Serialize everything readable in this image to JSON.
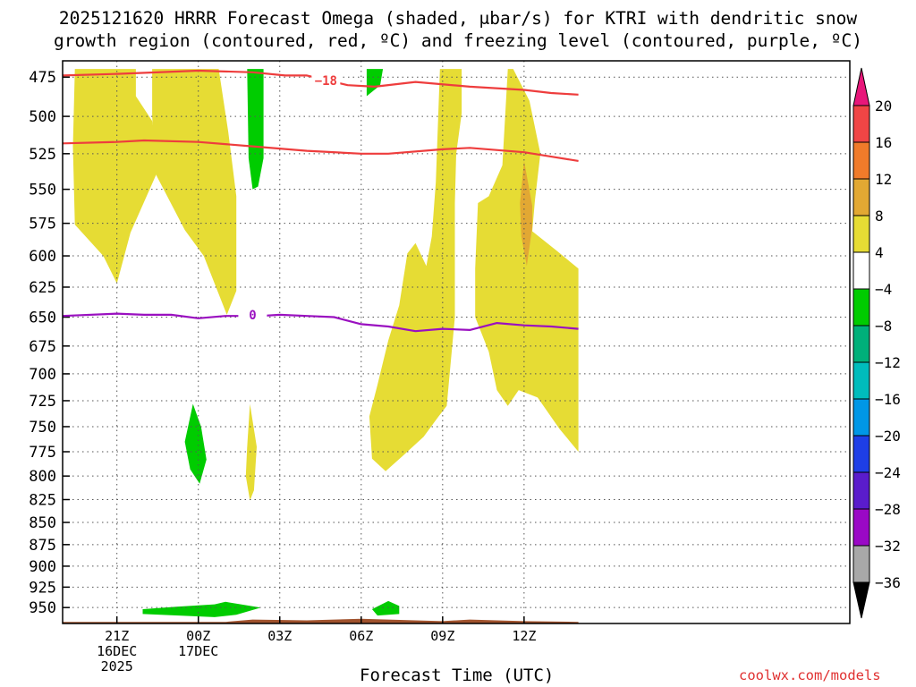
{
  "title_line1": "2025121620 HRRR Forecast Omega (shaded, μbar/s) for KTRI with dendritic snow",
  "title_line2": "growth region (contoured, red, ºC) and freezing level (contoured, purple, ºC)",
  "credit": "coolwx.com/models",
  "chart_data": {
    "type": "contour",
    "xlabel": "Forecast Time (UTC)",
    "x_range_hours": [
      -2,
      27
    ],
    "x_ticks": [
      {
        "hour": 0,
        "lines": [
          "21Z",
          "16DEC",
          "2025"
        ]
      },
      {
        "hour": 3,
        "lines": [
          "00Z",
          "17DEC"
        ]
      },
      {
        "hour": 6,
        "lines": [
          "03Z"
        ]
      },
      {
        "hour": 9,
        "lines": [
          "06Z"
        ]
      },
      {
        "hour": 12,
        "lines": [
          "09Z"
        ]
      },
      {
        "hour": 15,
        "lines": [
          "12Z"
        ]
      }
    ],
    "y_scale": "log-pressure",
    "y_range_hpa": [
      465,
      970
    ],
    "y_ticks": [
      475,
      500,
      525,
      550,
      575,
      600,
      625,
      650,
      675,
      700,
      725,
      750,
      775,
      800,
      825,
      850,
      875,
      900,
      925,
      950
    ],
    "grid": true,
    "colorbar": {
      "levels": [
        "20",
        "16",
        "12",
        "8",
        "4",
        "−4",
        "−8",
        "−12",
        "−16",
        "−20",
        "−24",
        "−28",
        "−32",
        "−36"
      ],
      "colors": [
        "#e8177a",
        "#f04545",
        "#f07b2a",
        "#e2a833",
        "#e6dc34",
        "#ffffff",
        "#00cc00",
        "#00b07a",
        "#00bcbc",
        "#0097e6",
        "#1e3ee6",
        "#5a1ccc",
        "#9a08c6",
        "#a8a8a8",
        "#000000"
      ]
    },
    "contours": [
      {
        "name": "-18 °C",
        "label": "−18",
        "color": "#ee3d3d",
        "points": [
          [
            -2,
            474
          ],
          [
            0,
            473
          ],
          [
            3,
            471
          ],
          [
            5,
            472
          ],
          [
            6.2,
            474
          ],
          [
            7,
            474
          ],
          [
            8.5,
            480
          ],
          [
            9.5,
            481
          ],
          [
            11,
            478
          ],
          [
            13,
            481
          ],
          [
            15,
            483
          ],
          [
            16,
            485
          ],
          [
            17,
            486
          ]
        ]
      },
      {
        "name": "-12 °C",
        "label": "",
        "color": "#ee3d3d",
        "points": [
          [
            -2,
            518
          ],
          [
            0,
            517
          ],
          [
            1,
            516
          ],
          [
            3,
            517
          ],
          [
            5,
            520
          ],
          [
            7,
            523
          ],
          [
            9,
            525
          ],
          [
            10,
            525
          ],
          [
            12,
            522
          ],
          [
            13,
            521
          ],
          [
            15,
            524
          ],
          [
            16,
            527
          ],
          [
            17,
            530
          ]
        ]
      },
      {
        "name": "0 °C",
        "label": "0",
        "color": "#9a10c0",
        "points": [
          [
            -2,
            649
          ],
          [
            0,
            647
          ],
          [
            1,
            648
          ],
          [
            2,
            648
          ],
          [
            3,
            651
          ],
          [
            4,
            649
          ],
          [
            5.3,
            649
          ],
          [
            6,
            648
          ],
          [
            7,
            649
          ],
          [
            8,
            650
          ],
          [
            9,
            656
          ],
          [
            10,
            658
          ],
          [
            11,
            662
          ],
          [
            12,
            660
          ],
          [
            13,
            661
          ],
          [
            14,
            655
          ],
          [
            15,
            657
          ],
          [
            16,
            658
          ],
          [
            17,
            660
          ]
        ]
      }
    ],
    "shaded_regions": [
      {
        "color": "#e6dc34",
        "points": [
          [
            -1.55,
            470
          ],
          [
            0.7,
            470
          ],
          [
            0.7,
            487
          ],
          [
            1.3,
            503
          ],
          [
            1.6,
            533
          ],
          [
            0.5,
            582
          ],
          [
            0,
            622
          ],
          [
            -0.5,
            600
          ],
          [
            -1.55,
            576
          ],
          [
            -1.62,
            520
          ]
        ]
      },
      {
        "color": "#e6dc34",
        "points": [
          [
            1.3,
            470
          ],
          [
            3.75,
            470
          ],
          [
            4.1,
            510
          ],
          [
            4.4,
            555
          ],
          [
            4.4,
            628
          ],
          [
            4.05,
            648
          ],
          [
            3.2,
            600
          ],
          [
            2.5,
            580
          ],
          [
            1.45,
            540
          ],
          [
            1.3,
            500
          ]
        ]
      },
      {
        "color": "#e6dc34",
        "points": [
          [
            11.9,
            470
          ],
          [
            12.7,
            470
          ],
          [
            12.7,
            498
          ],
          [
            12.5,
            525
          ],
          [
            12.45,
            560
          ],
          [
            12.45,
            650
          ],
          [
            12.15,
            730
          ],
          [
            11.85,
            740
          ],
          [
            11.3,
            760
          ],
          [
            10.5,
            780
          ],
          [
            9.9,
            795
          ],
          [
            9.4,
            782
          ],
          [
            9.3,
            740
          ],
          [
            9.6,
            710
          ],
          [
            10.0,
            670
          ],
          [
            10.4,
            640
          ],
          [
            10.7,
            598
          ],
          [
            11.0,
            590
          ],
          [
            11.4,
            608
          ],
          [
            11.6,
            585
          ],
          [
            11.75,
            545
          ]
        ]
      },
      {
        "color": "#e6dc34",
        "points": [
          [
            14.4,
            470
          ],
          [
            14.6,
            470
          ],
          [
            15.2,
            490
          ],
          [
            15.6,
            525
          ],
          [
            15.4,
            558
          ],
          [
            15.3,
            581
          ],
          [
            16.2,
            596
          ],
          [
            17,
            610
          ],
          [
            17,
            775
          ],
          [
            16.3,
            752
          ],
          [
            15.5,
            722
          ],
          [
            14.8,
            715
          ],
          [
            14.4,
            730
          ],
          [
            14.0,
            715
          ],
          [
            13.7,
            680
          ],
          [
            13.2,
            650
          ],
          [
            13.2,
            610
          ],
          [
            13.3,
            560
          ],
          [
            13.7,
            555
          ],
          [
            14.2,
            533
          ]
        ]
      },
      {
        "color": "#e6dc34",
        "points": [
          [
            4.9,
            728
          ],
          [
            5.15,
            770
          ],
          [
            5.05,
            815
          ],
          [
            4.9,
            826
          ],
          [
            4.75,
            800
          ],
          [
            4.8,
            770
          ]
        ]
      },
      {
        "color": "#e2a833",
        "points": [
          [
            15.0,
            530
          ],
          [
            15.3,
            562
          ],
          [
            15.3,
            578
          ],
          [
            15.1,
            608
          ],
          [
            14.9,
            585
          ],
          [
            14.85,
            560
          ]
        ]
      },
      {
        "color": "#00cc00",
        "points": [
          [
            4.8,
            470
          ],
          [
            5.4,
            470
          ],
          [
            5.4,
            528
          ],
          [
            5.2,
            548
          ],
          [
            5.0,
            550
          ],
          [
            4.85,
            528
          ]
        ]
      },
      {
        "color": "#00cc00",
        "points": [
          [
            9.2,
            470
          ],
          [
            9.8,
            470
          ],
          [
            9.7,
            480
          ],
          [
            9.2,
            487
          ]
        ]
      },
      {
        "color": "#00cc00",
        "points": [
          [
            2.8,
            728
          ],
          [
            3.1,
            750
          ],
          [
            3.3,
            783
          ],
          [
            3.05,
            808
          ],
          [
            2.7,
            793
          ],
          [
            2.5,
            765
          ]
        ]
      },
      {
        "color": "#00cc00",
        "points": [
          [
            0.95,
            952
          ],
          [
            2.2,
            949
          ],
          [
            3.6,
            946
          ],
          [
            4,
            943
          ],
          [
            5.3,
            950
          ],
          [
            4.4,
            959
          ],
          [
            3.6,
            962
          ],
          [
            0.95,
            958
          ]
        ]
      },
      {
        "color": "#00cc00",
        "points": [
          [
            9.4,
            952
          ],
          [
            10.0,
            942
          ],
          [
            10.4,
            948
          ],
          [
            10.4,
            958
          ],
          [
            9.6,
            960
          ]
        ]
      },
      {
        "color": "#a0522d",
        "points": [
          [
            -2,
            968
          ],
          [
            4,
            968
          ],
          [
            5,
            965
          ],
          [
            7,
            966
          ],
          [
            9,
            964
          ],
          [
            12,
            967
          ],
          [
            13,
            965
          ],
          [
            15,
            967
          ],
          [
            17,
            968
          ],
          [
            17,
            975
          ],
          [
            -2,
            975
          ]
        ]
      }
    ]
  }
}
